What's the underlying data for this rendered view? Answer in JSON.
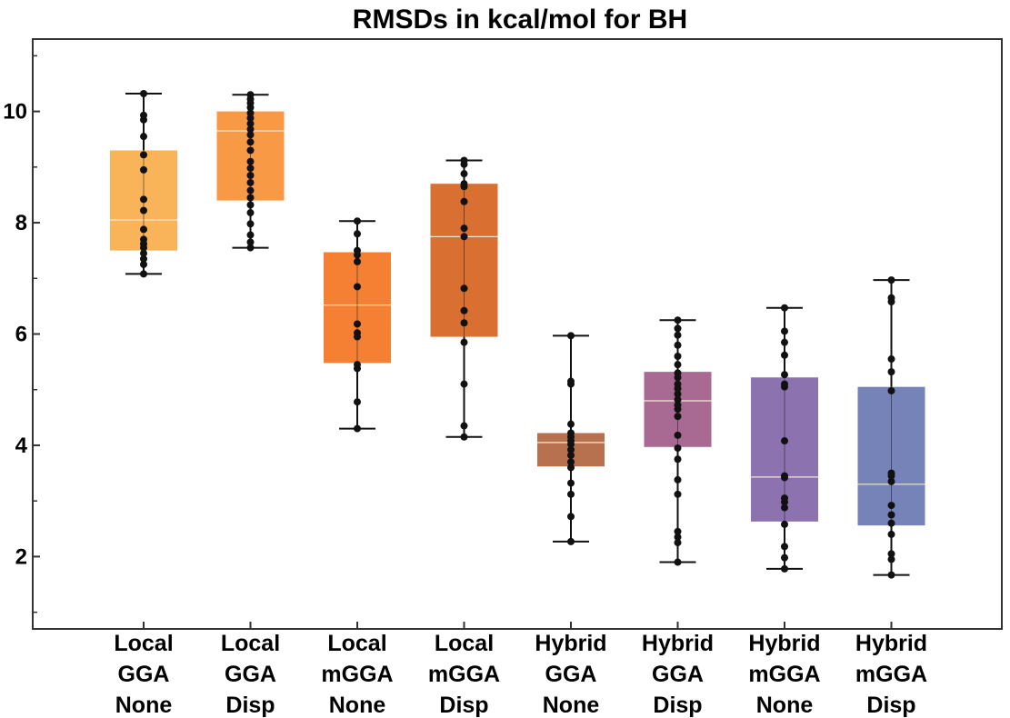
{
  "chart_data": {
    "type": "box",
    "title": "RMSDs in kcal/mol for BH",
    "xlabel": "",
    "ylabel": "",
    "ylim": [
      0.7,
      11.3
    ],
    "yticks": [
      2,
      4,
      6,
      8,
      10
    ],
    "ytick_labels": [
      "2",
      "4",
      "6",
      "8",
      "10"
    ],
    "grid": false,
    "legend": "none",
    "categories": [
      {
        "lines": [
          "Local",
          "GGA",
          "None"
        ],
        "color": "#F9B45A",
        "q1": 7.5,
        "median": 8.05,
        "q3": 9.3,
        "whisker_low": 7.08,
        "whisker_high": 10.32,
        "points": [
          7.08,
          7.25,
          7.35,
          7.45,
          7.55,
          7.62,
          7.7,
          7.88,
          8.22,
          8.42,
          8.95,
          9.22,
          9.55,
          9.85,
          9.93,
          10.32
        ]
      },
      {
        "lines": [
          "Local",
          "GGA",
          "Disp"
        ],
        "color": "#F79945",
        "q1": 8.4,
        "median": 9.65,
        "q3": 10.0,
        "whisker_low": 7.55,
        "whisker_high": 10.3,
        "points": [
          7.55,
          7.65,
          7.78,
          7.98,
          8.18,
          8.32,
          8.45,
          8.58,
          8.72,
          8.85,
          8.98,
          9.1,
          9.3,
          9.45,
          9.58,
          9.68,
          9.78,
          9.88,
          9.97,
          10.07,
          10.15,
          10.22,
          10.3
        ]
      },
      {
        "lines": [
          "Local",
          "mGGA",
          "None"
        ],
        "color": "#F58033",
        "q1": 5.48,
        "median": 6.52,
        "q3": 7.47,
        "whisker_low": 4.3,
        "whisker_high": 8.03,
        "points": [
          4.3,
          4.78,
          5.38,
          5.45,
          5.95,
          6.02,
          6.18,
          6.85,
          7.3,
          7.42,
          7.5,
          7.8,
          8.03
        ]
      },
      {
        "lines": [
          "Local",
          "mGGA",
          "Disp"
        ],
        "color": "#D96F30",
        "q1": 5.95,
        "median": 7.75,
        "q3": 8.7,
        "whisker_low": 4.15,
        "whisker_high": 9.12,
        "points": [
          4.15,
          4.35,
          5.1,
          5.85,
          6.2,
          6.42,
          6.82,
          7.75,
          7.9,
          8.38,
          8.65,
          8.7,
          8.88,
          9.05,
          9.12
        ]
      },
      {
        "lines": [
          "Hybrid",
          "GGA",
          "None"
        ],
        "color": "#B8714E",
        "q1": 3.62,
        "median": 4.05,
        "q3": 4.22,
        "whisker_low": 2.27,
        "whisker_high": 5.97,
        "points": [
          2.27,
          2.72,
          3.12,
          3.32,
          3.6,
          3.7,
          3.82,
          3.92,
          4.02,
          4.08,
          4.15,
          4.22,
          4.38,
          5.1,
          5.15,
          5.97
        ]
      },
      {
        "lines": [
          "Hybrid",
          "GGA",
          "Disp"
        ],
        "color": "#A86A92",
        "q1": 3.97,
        "median": 4.8,
        "q3": 5.32,
        "whisker_low": 1.9,
        "whisker_high": 6.25,
        "points": [
          1.9,
          2.25,
          2.35,
          2.45,
          3.12,
          3.38,
          3.75,
          3.95,
          4.18,
          4.52,
          4.65,
          4.72,
          4.82,
          4.92,
          5.02,
          5.1,
          5.22,
          5.3,
          5.45,
          5.6,
          5.8,
          5.98,
          6.1,
          6.25
        ]
      },
      {
        "lines": [
          "Hybrid",
          "mGGA",
          "None"
        ],
        "color": "#8C72AE",
        "q1": 2.63,
        "median": 3.43,
        "q3": 5.22,
        "whisker_low": 1.78,
        "whisker_high": 6.47,
        "points": [
          1.78,
          1.98,
          2.18,
          2.58,
          2.88,
          2.98,
          3.05,
          3.42,
          3.45,
          4.08,
          5.05,
          5.1,
          5.27,
          5.62,
          5.85,
          6.05,
          6.47
        ]
      },
      {
        "lines": [
          "Hybrid",
          "mGGA",
          "Disp"
        ],
        "color": "#7683B9",
        "q1": 2.56,
        "median": 3.3,
        "q3": 5.05,
        "whisker_low": 1.67,
        "whisker_high": 6.97,
        "points": [
          1.67,
          1.95,
          2.05,
          2.4,
          2.6,
          2.75,
          2.92,
          3.35,
          3.45,
          3.5,
          4.98,
          5.32,
          5.55,
          6.58,
          6.65,
          6.97
        ]
      }
    ]
  }
}
